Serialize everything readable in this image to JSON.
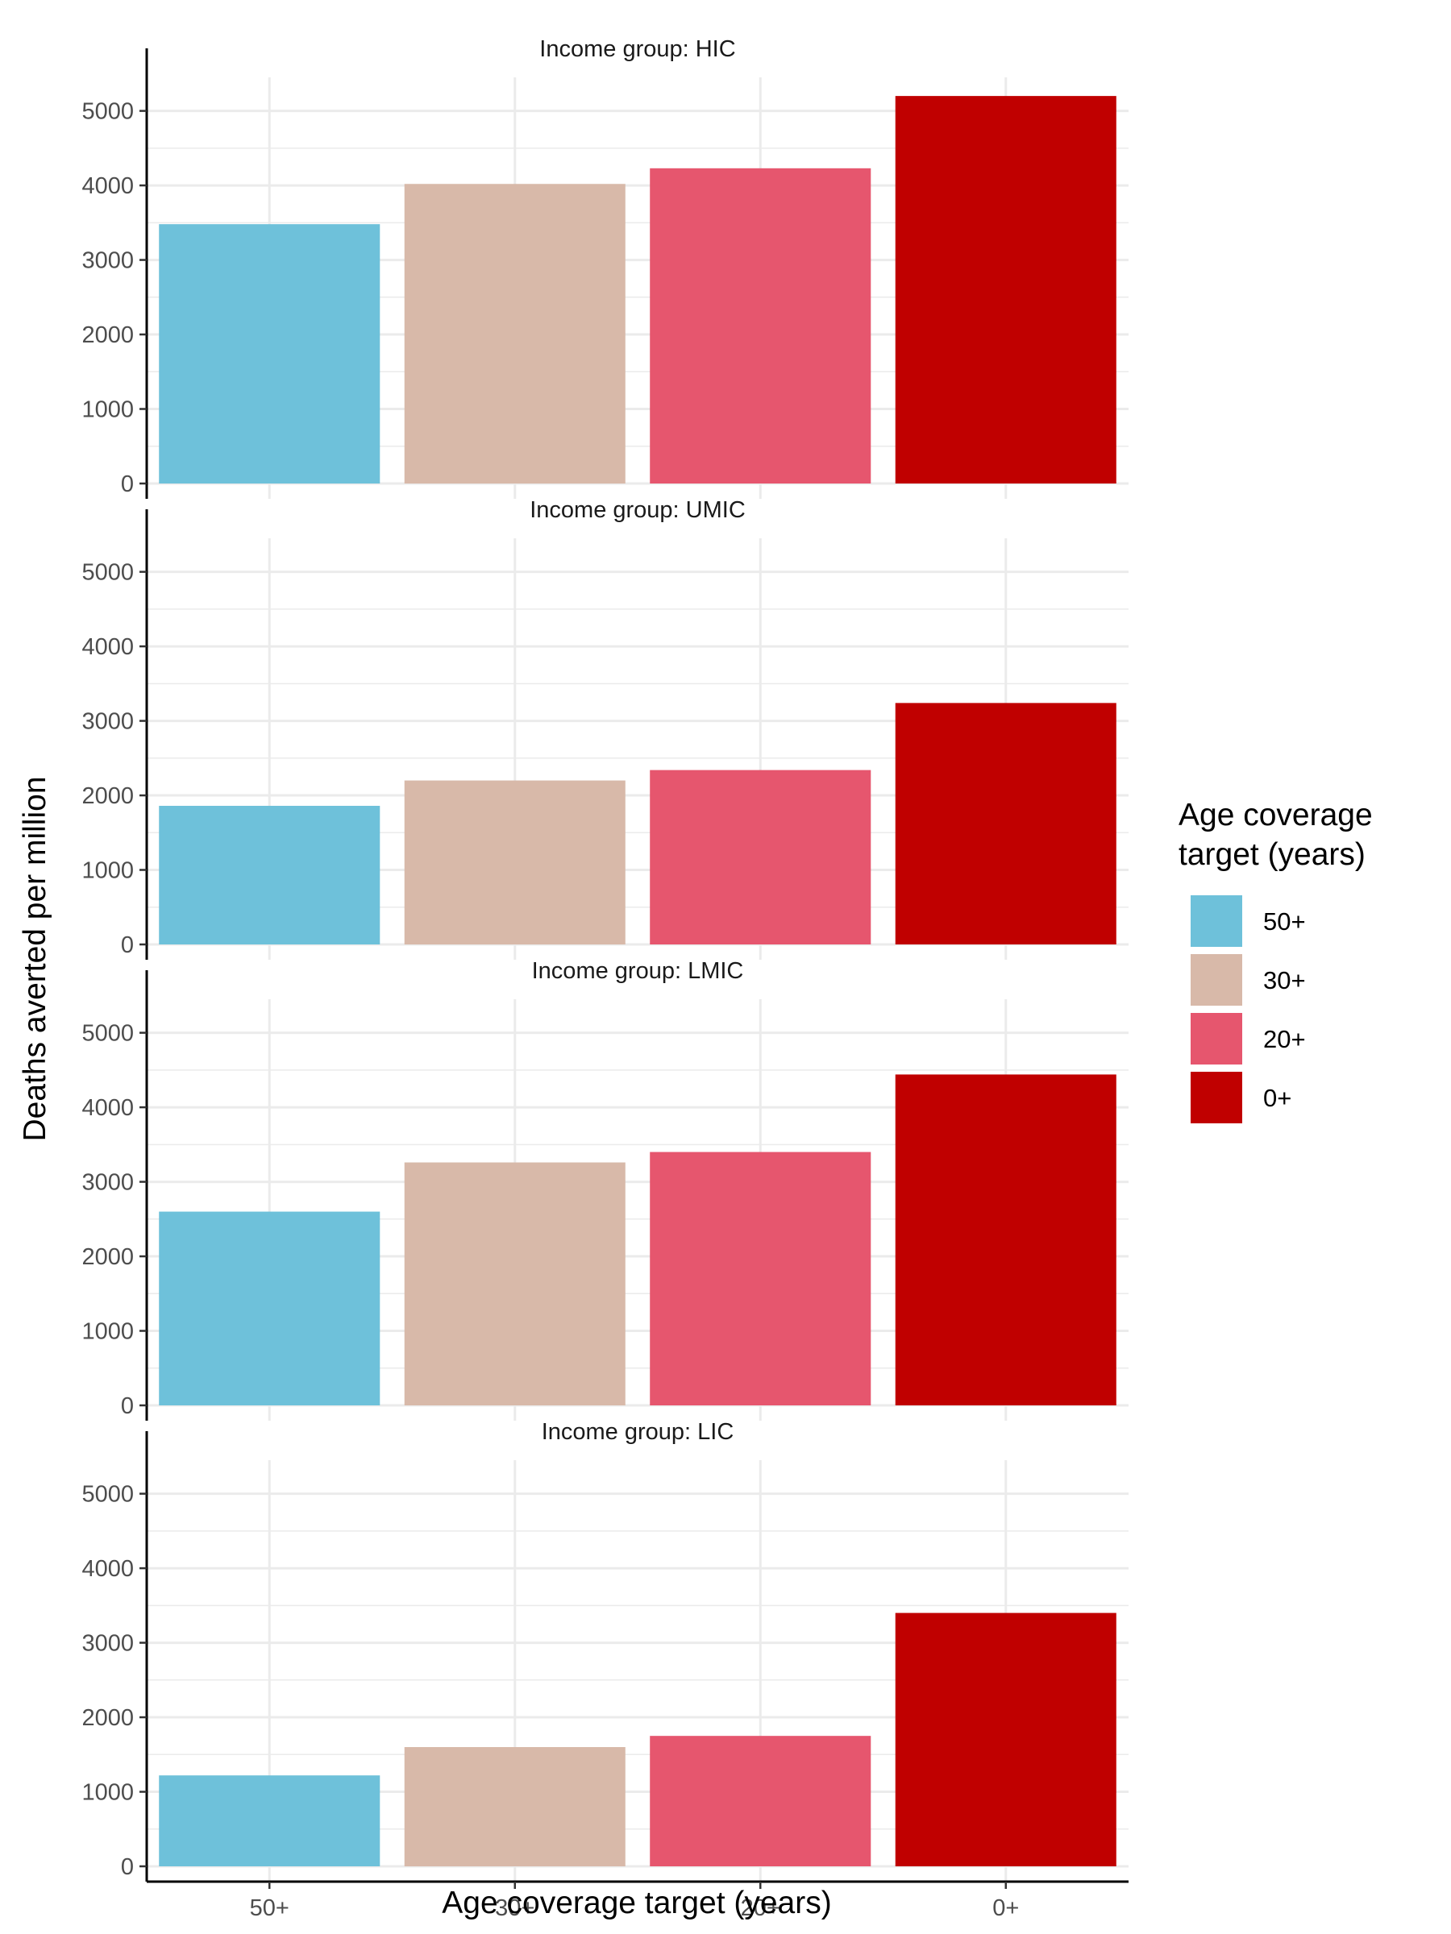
{
  "chart_data": {
    "type": "bar",
    "xlabel": "Age coverage target (years)",
    "ylabel": "Deaths averted per million",
    "categories": [
      "50+",
      "30+",
      "20+",
      "0+"
    ],
    "colors": [
      "#6ec1da",
      "#d8b9a9",
      "#e6566e",
      "#c00000"
    ],
    "ylim": [
      0,
      5450
    ],
    "yticks": [
      0,
      1000,
      2000,
      3000,
      4000,
      5000
    ],
    "ytick_labels": [
      "0",
      "1000",
      "2000",
      "3000",
      "4000",
      "5000"
    ],
    "grid": true,
    "legend": {
      "title_line1": "Age coverage",
      "title_line2": "target (years)",
      "position": "right",
      "entries": [
        "50+",
        "30+",
        "20+",
        "0+"
      ]
    },
    "panels": [
      {
        "title": "Income group: HIC",
        "values": [
          3480,
          4020,
          4230,
          5200
        ]
      },
      {
        "title": "Income group: UMIC",
        "values": [
          1860,
          2200,
          2340,
          3240
        ]
      },
      {
        "title": "Income group: LMIC",
        "values": [
          2600,
          3260,
          3400,
          4440
        ]
      },
      {
        "title": "Income group: LIC",
        "values": [
          1220,
          1600,
          1750,
          3400
        ]
      }
    ]
  }
}
